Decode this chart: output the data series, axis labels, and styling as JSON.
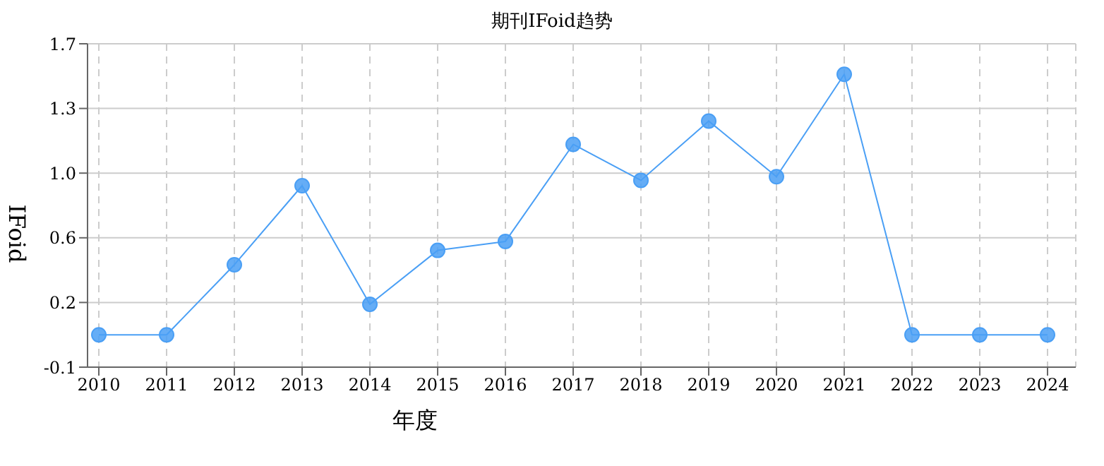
{
  "chart_data": {
    "type": "line",
    "title": "期刊IFoid趋势",
    "xlabel": "年度",
    "ylabel": "IFoid",
    "categories": [
      "2010",
      "2011",
      "2012",
      "2013",
      "2014",
      "2015",
      "2016",
      "2017",
      "2018",
      "2019",
      "2020",
      "2021",
      "2022",
      "2023",
      "2024"
    ],
    "series": [
      {
        "color": "#4a9ff5",
        "values": [
          0.06,
          0.06,
          0.45,
          0.89,
          0.23,
          0.53,
          0.58,
          1.12,
          0.92,
          1.25,
          0.94,
          1.51,
          0.06,
          0.06,
          0.06
        ]
      }
    ],
    "ylim": [
      -0.12,
      1.68
    ],
    "yticks": [
      {
        "value": -0.12,
        "label": "-0.1"
      },
      {
        "value": 0.24,
        "label": "0.2"
      },
      {
        "value": 0.6,
        "label": "0.6"
      },
      {
        "value": 0.96,
        "label": "1.0"
      },
      {
        "value": 1.32,
        "label": "1.3"
      },
      {
        "value": 1.68,
        "label": "1.7"
      }
    ],
    "grid": true,
    "marker": "circle",
    "line_style": "solid",
    "legend": false
  }
}
